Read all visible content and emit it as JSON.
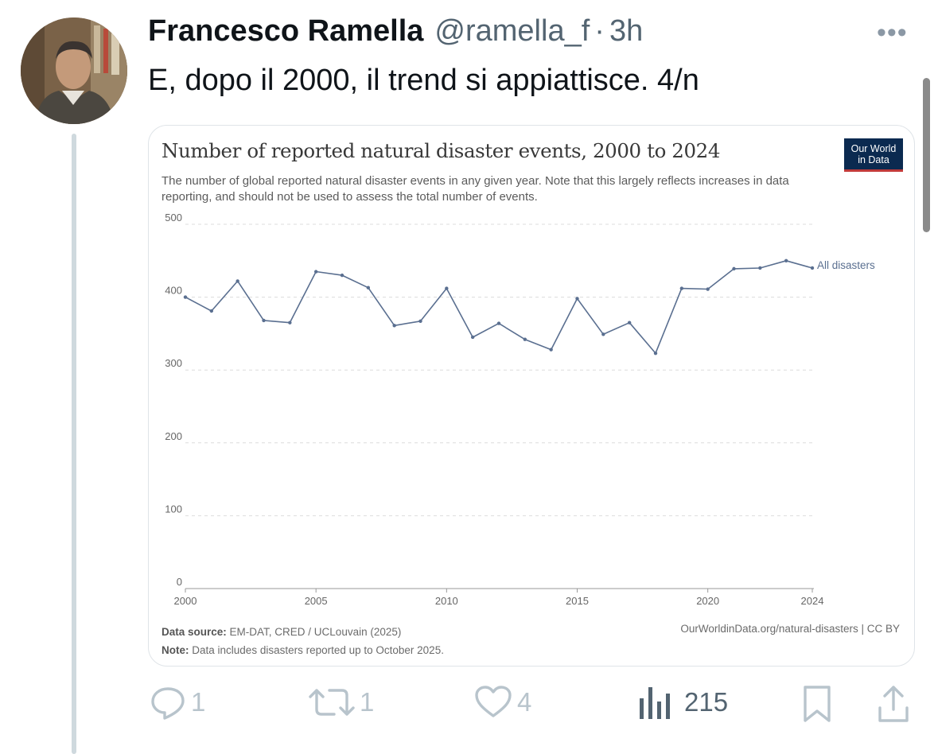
{
  "tweet": {
    "author_name": "Francesco Ramella",
    "handle": "@ramella_f",
    "separator": "·",
    "time": "3h",
    "more_label": "•••",
    "text": "E, dopo il 2000, il trend si appiattisce. 4/n"
  },
  "actions": {
    "replies": "1",
    "retweets": "1",
    "likes": "4",
    "views": "215"
  },
  "card": {
    "logo_line1": "Our World",
    "logo_line2": "in Data",
    "data_source_label": "Data source:",
    "data_source": "EM-DAT, CRED / UCLouvain (2025)",
    "note_label": "Note:",
    "note": "Data includes disasters reported up to October 2025.",
    "url_license": "OurWorldinData.org/natural-disasters | CC BY"
  },
  "chart_data": {
    "type": "line",
    "title": "Number of reported natural disaster events, 2000 to 2024",
    "subtitle": "The number of global reported natural disaster events in any given year. Note that this largely reflects increases in data reporting, and should not be used to assess the total number of events.",
    "xlabel": "",
    "ylabel": "",
    "x": [
      2000,
      2001,
      2002,
      2003,
      2004,
      2005,
      2006,
      2007,
      2008,
      2009,
      2010,
      2011,
      2012,
      2013,
      2014,
      2015,
      2016,
      2017,
      2018,
      2019,
      2020,
      2021,
      2022,
      2023,
      2024
    ],
    "series": [
      {
        "name": "All disasters",
        "color": "#5a6f90",
        "values": [
          400,
          381,
          422,
          368,
          365,
          435,
          430,
          413,
          361,
          367,
          412,
          345,
          364,
          342,
          328,
          398,
          349,
          365,
          323,
          412,
          411,
          439,
          440,
          450,
          440
        ]
      }
    ],
    "ylim": [
      0,
      500
    ],
    "yticks": [
      0,
      100,
      200,
      300,
      400,
      500
    ],
    "xticks": [
      2000,
      2005,
      2010,
      2015,
      2020,
      2024
    ],
    "grid": "dashed-horizontal"
  }
}
